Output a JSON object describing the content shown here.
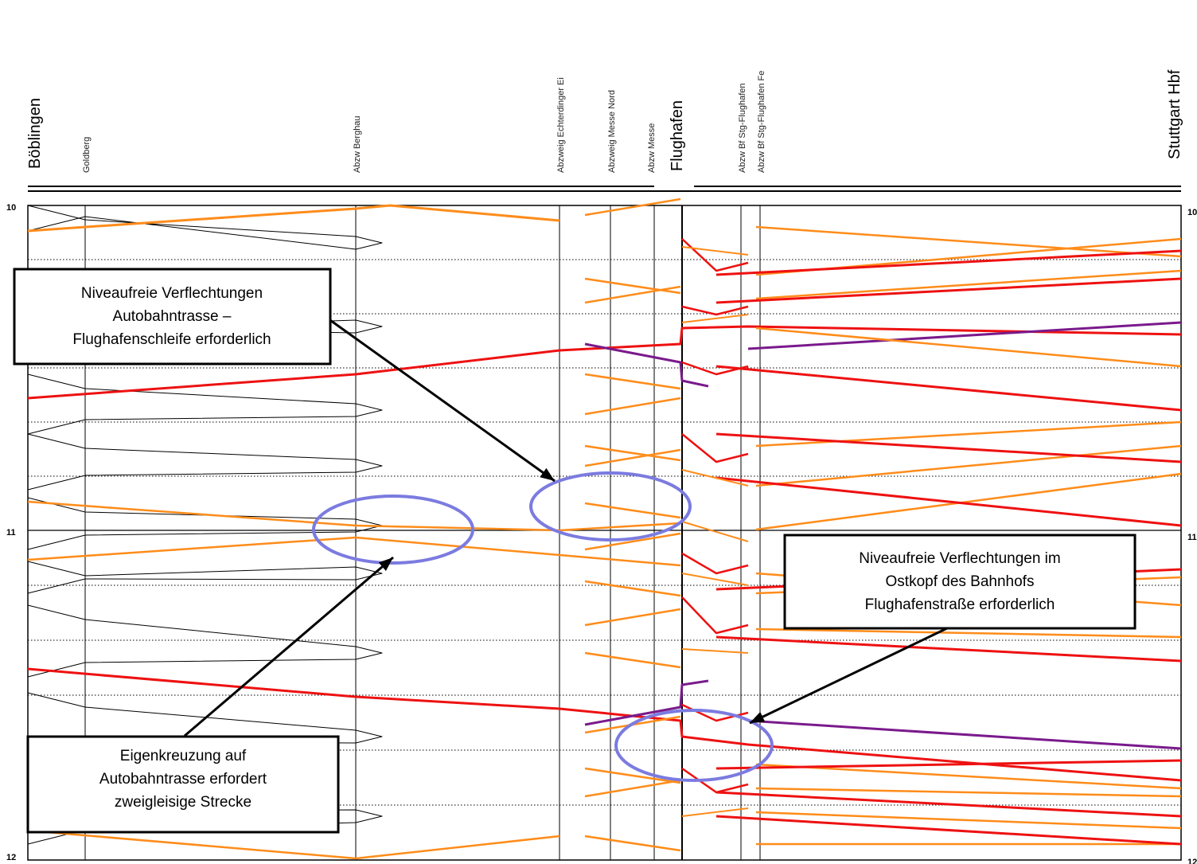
{
  "stations": [
    {
      "name": "Böblingen",
      "size": "big"
    },
    {
      "name": "Goldberg",
      "size": "small"
    },
    {
      "name": "Abzw Berghau",
      "size": "small"
    },
    {
      "name": "Abzweig Echterdinger Ei",
      "size": "small"
    },
    {
      "name": "Abzweig Messe Nord",
      "size": "small"
    },
    {
      "name": "Abzw Messe",
      "size": "small"
    },
    {
      "name": "Flughafen",
      "size": "big"
    },
    {
      "name": "Abzw Bf Stg-Flughafen",
      "size": "small"
    },
    {
      "name": "Abzw Bf Stg-Flughafen Fe",
      "size": "small"
    },
    {
      "name": "Stuttgart Hbf",
      "size": "big"
    }
  ],
  "time_axis": {
    "left_labels": [
      "10",
      "11",
      "12"
    ],
    "right_labels": [
      "10",
      "11",
      "12"
    ]
  },
  "colors": {
    "orange": "#ff8c1a",
    "red": "#ee1111",
    "purple": "#7a1a8c",
    "ellipse": "#7b7be0",
    "black": "#000000"
  },
  "callouts": [
    {
      "id": "top-left",
      "lines": [
        "Niveaufreie Verflechtungen",
        "Autobahntrasse –",
        "Flughafenschleife erforderlich"
      ]
    },
    {
      "id": "bottom-left",
      "lines": [
        "Eigenkreuzung auf",
        "Autobahntrasse erfordert",
        "zweigleisige Strecke"
      ]
    },
    {
      "id": "right",
      "lines": [
        "Niveaufreie Verflechtungen im",
        "Ostkopf des Bahnhofs",
        "Flughafenstraße erforderlich"
      ]
    }
  ]
}
